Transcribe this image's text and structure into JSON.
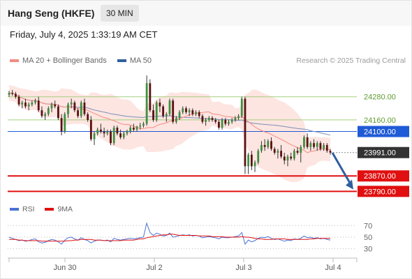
{
  "header": {
    "title": "Hang Seng (HKFE)",
    "interval": "30 MIN"
  },
  "datetime": "Friday, July 4, 2025 1:33:19 AM CET",
  "credit": "Research © 2025 Trading Central",
  "legend": {
    "ma20": {
      "label": "MA 20 + Bollinger Bands",
      "color": "#f28b82"
    },
    "ma50": {
      "label": "MA 50",
      "color": "#2f5f9e"
    }
  },
  "rsi_legend": {
    "rsi": {
      "label": "RSI",
      "color": "#4a72d6"
    },
    "ma9": {
      "label": "9MA",
      "color": "#e01010"
    }
  },
  "chart_data": [
    {
      "type": "candlestick",
      "title": "Hang Seng (HKFE)",
      "interval": "30 MIN",
      "x_labels": [
        "Jun 30",
        "Jul 2",
        "Jul 3",
        "Jul 4"
      ],
      "ylim": [
        23730,
        24380
      ],
      "price_levels": [
        {
          "label": "24280.00",
          "value": 24280,
          "kind": "resistance",
          "color": "#a3cf7f"
        },
        {
          "label": "24160.00",
          "value": 24160,
          "kind": "resistance",
          "color": "#a3cf7f"
        },
        {
          "label": "24100.00",
          "value": 24100,
          "kind": "pivot",
          "color": "#1f5bd6"
        },
        {
          "label": "23991.00",
          "value": 23991,
          "kind": "last",
          "color": "#333333"
        },
        {
          "label": "23870.00",
          "value": 23870,
          "kind": "support",
          "color": "#e01010"
        },
        {
          "label": "23790.00",
          "value": 23790,
          "kind": "support",
          "color": "#e01010"
        }
      ],
      "forecast_arrow": {
        "from": 23990,
        "to": 23800,
        "color": "#2f5f9e"
      },
      "ohlc": [
        [
          24290,
          24310,
          24280,
          24300
        ],
        [
          24300,
          24315,
          24285,
          24295
        ],
        [
          24295,
          24305,
          24270,
          24280
        ],
        [
          24280,
          24290,
          24230,
          24240
        ],
        [
          24240,
          24260,
          24220,
          24250
        ],
        [
          24250,
          24270,
          24220,
          24230
        ],
        [
          24230,
          24250,
          24210,
          24240
        ],
        [
          24240,
          24260,
          24230,
          24250
        ],
        [
          24250,
          24270,
          24240,
          24260
        ],
        [
          24260,
          24280,
          24200,
          24210
        ],
        [
          24210,
          24230,
          24170,
          24180
        ],
        [
          24180,
          24200,
          24160,
          24190
        ],
        [
          24190,
          24230,
          24180,
          24220
        ],
        [
          24220,
          24250,
          24200,
          24240
        ],
        [
          24240,
          24260,
          24220,
          24230
        ],
        [
          24230,
          24240,
          24160,
          24170
        ],
        [
          24170,
          24190,
          24080,
          24100
        ],
        [
          24100,
          24200,
          24090,
          24190
        ],
        [
          24190,
          24250,
          24170,
          24240
        ],
        [
          24240,
          24270,
          24220,
          24250
        ],
        [
          24250,
          24260,
          24200,
          24210
        ],
        [
          24210,
          24220,
          24170,
          24180
        ],
        [
          24180,
          24260,
          24170,
          24250
        ],
        [
          24250,
          24270,
          24180,
          24190
        ],
        [
          24190,
          24200,
          24150,
          24160
        ],
        [
          24160,
          24180,
          24050,
          24060
        ],
        [
          24060,
          24100,
          24030,
          24090
        ],
        [
          24090,
          24120,
          24080,
          24110
        ],
        [
          24110,
          24140,
          24090,
          24100
        ],
        [
          24100,
          24120,
          24070,
          24090
        ],
        [
          24090,
          24110,
          24080,
          24100
        ],
        [
          24100,
          24110,
          24030,
          24040
        ],
        [
          24040,
          24130,
          24030,
          24120
        ],
        [
          24120,
          24130,
          24080,
          24090
        ],
        [
          24090,
          24110,
          24060,
          24070
        ],
        [
          24070,
          24100,
          24060,
          24090
        ],
        [
          24090,
          24110,
          24080,
          24100
        ],
        [
          24100,
          24130,
          24090,
          24120
        ],
        [
          24120,
          24140,
          24100,
          24110
        ],
        [
          24110,
          24130,
          24100,
          24125
        ],
        [
          24125,
          24145,
          24110,
          24130
        ],
        [
          24130,
          24150,
          24120,
          24140
        ],
        [
          24140,
          24390,
          24130,
          24350
        ],
        [
          24350,
          24370,
          24200,
          24210
        ],
        [
          24210,
          24240,
          24150,
          24160
        ],
        [
          24160,
          24260,
          24150,
          24250
        ],
        [
          24250,
          24270,
          24200,
          24230
        ],
        [
          24230,
          24240,
          24170,
          24180
        ],
        [
          24180,
          24200,
          24150,
          24190
        ],
        [
          24190,
          24270,
          24180,
          24260
        ],
        [
          24260,
          24270,
          24140,
          24150
        ],
        [
          24150,
          24180,
          24140,
          24170
        ],
        [
          24170,
          24210,
          24160,
          24200
        ],
        [
          24200,
          24230,
          24190,
          24220
        ],
        [
          24220,
          24230,
          24190,
          24200
        ],
        [
          24200,
          24220,
          24180,
          24210
        ],
        [
          24210,
          24220,
          24180,
          24190
        ],
        [
          24190,
          24210,
          24180,
          24200
        ],
        [
          24200,
          24210,
          24170,
          24180
        ],
        [
          24180,
          24190,
          24140,
          24150
        ],
        [
          24150,
          24170,
          24130,
          24160
        ],
        [
          24160,
          24180,
          24150,
          24170
        ],
        [
          24170,
          24180,
          24150,
          24160
        ],
        [
          24160,
          24170,
          24140,
          24150
        ],
        [
          24150,
          24160,
          24110,
          24120
        ],
        [
          24120,
          24170,
          24110,
          24160
        ],
        [
          24160,
          24170,
          24130,
          24140
        ],
        [
          24140,
          24160,
          24130,
          24150
        ],
        [
          24150,
          24170,
          24140,
          24160
        ],
        [
          24160,
          24180,
          24150,
          24170
        ],
        [
          24170,
          24190,
          24160,
          24180
        ],
        [
          24180,
          24280,
          24170,
          24270
        ],
        [
          24270,
          24280,
          23880,
          23920
        ],
        [
          23920,
          23990,
          23880,
          23980
        ],
        [
          23980,
          24000,
          23900,
          23920
        ],
        [
          23920,
          23950,
          23890,
          23940
        ],
        [
          23940,
          24010,
          23930,
          24000
        ],
        [
          24000,
          24050,
          23990,
          24030
        ],
        [
          24030,
          24060,
          24000,
          24020
        ],
        [
          24020,
          24060,
          24010,
          24050
        ],
        [
          24050,
          24070,
          24000,
          24010
        ],
        [
          24010,
          24020,
          23980,
          23990
        ],
        [
          23990,
          24010,
          23960,
          24000
        ],
        [
          24000,
          24030,
          23960,
          23970
        ],
        [
          23970,
          23990,
          23930,
          23950
        ],
        [
          23950,
          23980,
          23920,
          23970
        ],
        [
          23970,
          23990,
          23950,
          23960
        ],
        [
          23960,
          24010,
          23950,
          24000
        ],
        [
          24000,
          24020,
          23980,
          23990
        ],
        [
          23990,
          24030,
          23940,
          24020
        ],
        [
          24020,
          24080,
          24010,
          24070
        ],
        [
          24070,
          24090,
          24010,
          24020
        ],
        [
          24020,
          24050,
          24000,
          24040
        ],
        [
          24040,
          24060,
          24010,
          24020
        ],
        [
          24020,
          24050,
          24000,
          24040
        ],
        [
          24040,
          24050,
          24000,
          24010
        ],
        [
          24010,
          24040,
          24000,
          24030
        ],
        [
          24030,
          24040,
          23990,
          24000
        ],
        [
          24000,
          24010,
          23980,
          23991
        ]
      ]
    },
    {
      "type": "line",
      "series_name": "RSI",
      "ylim": [
        20,
        80
      ],
      "tick_labels": [
        "70",
        "50",
        "30"
      ],
      "rsi": [
        50,
        48,
        46,
        44,
        45,
        43,
        44,
        46,
        47,
        42,
        40,
        41,
        44,
        46,
        45,
        42,
        38,
        45,
        49,
        50,
        47,
        45,
        49,
        46,
        44,
        40,
        43,
        45,
        45,
        44,
        45,
        42,
        48,
        46,
        45,
        46,
        47,
        48,
        47,
        48,
        49,
        50,
        74,
        58,
        53,
        57,
        55,
        52,
        53,
        57,
        50,
        51,
        53,
        54,
        53,
        54,
        52,
        53,
        52,
        49,
        50,
        51,
        50,
        49,
        47,
        50,
        49,
        49,
        50,
        51,
        52,
        58,
        38,
        45,
        42,
        44,
        48,
        50,
        49,
        51,
        48,
        46,
        47,
        45,
        43,
        45,
        44,
        47,
        46,
        48,
        52,
        49,
        50,
        48,
        49,
        47,
        48,
        46,
        45
      ],
      "ma9": [
        46,
        46,
        46,
        45,
        45,
        44,
        44,
        44,
        44,
        44,
        43,
        43,
        43,
        43,
        43,
        43,
        43,
        43,
        44,
        44,
        45,
        45,
        46,
        46,
        46,
        46,
        45,
        45,
        45,
        44,
        44,
        44,
        44,
        44,
        44,
        45,
        45,
        45,
        45,
        46,
        47,
        47,
        49,
        50,
        51,
        52,
        53,
        54,
        54,
        55,
        55,
        54,
        53,
        53,
        53,
        53,
        53,
        53,
        52,
        52,
        52,
        52,
        51,
        51,
        51,
        51,
        50,
        50,
        50,
        50,
        50,
        51,
        50,
        50,
        49,
        48,
        47,
        47,
        46,
        46,
        46,
        47,
        47,
        47,
        47,
        46,
        46,
        46,
        46,
        46,
        46,
        46,
        47,
        47,
        48,
        48,
        48,
        48,
        48
      ]
    }
  ]
}
